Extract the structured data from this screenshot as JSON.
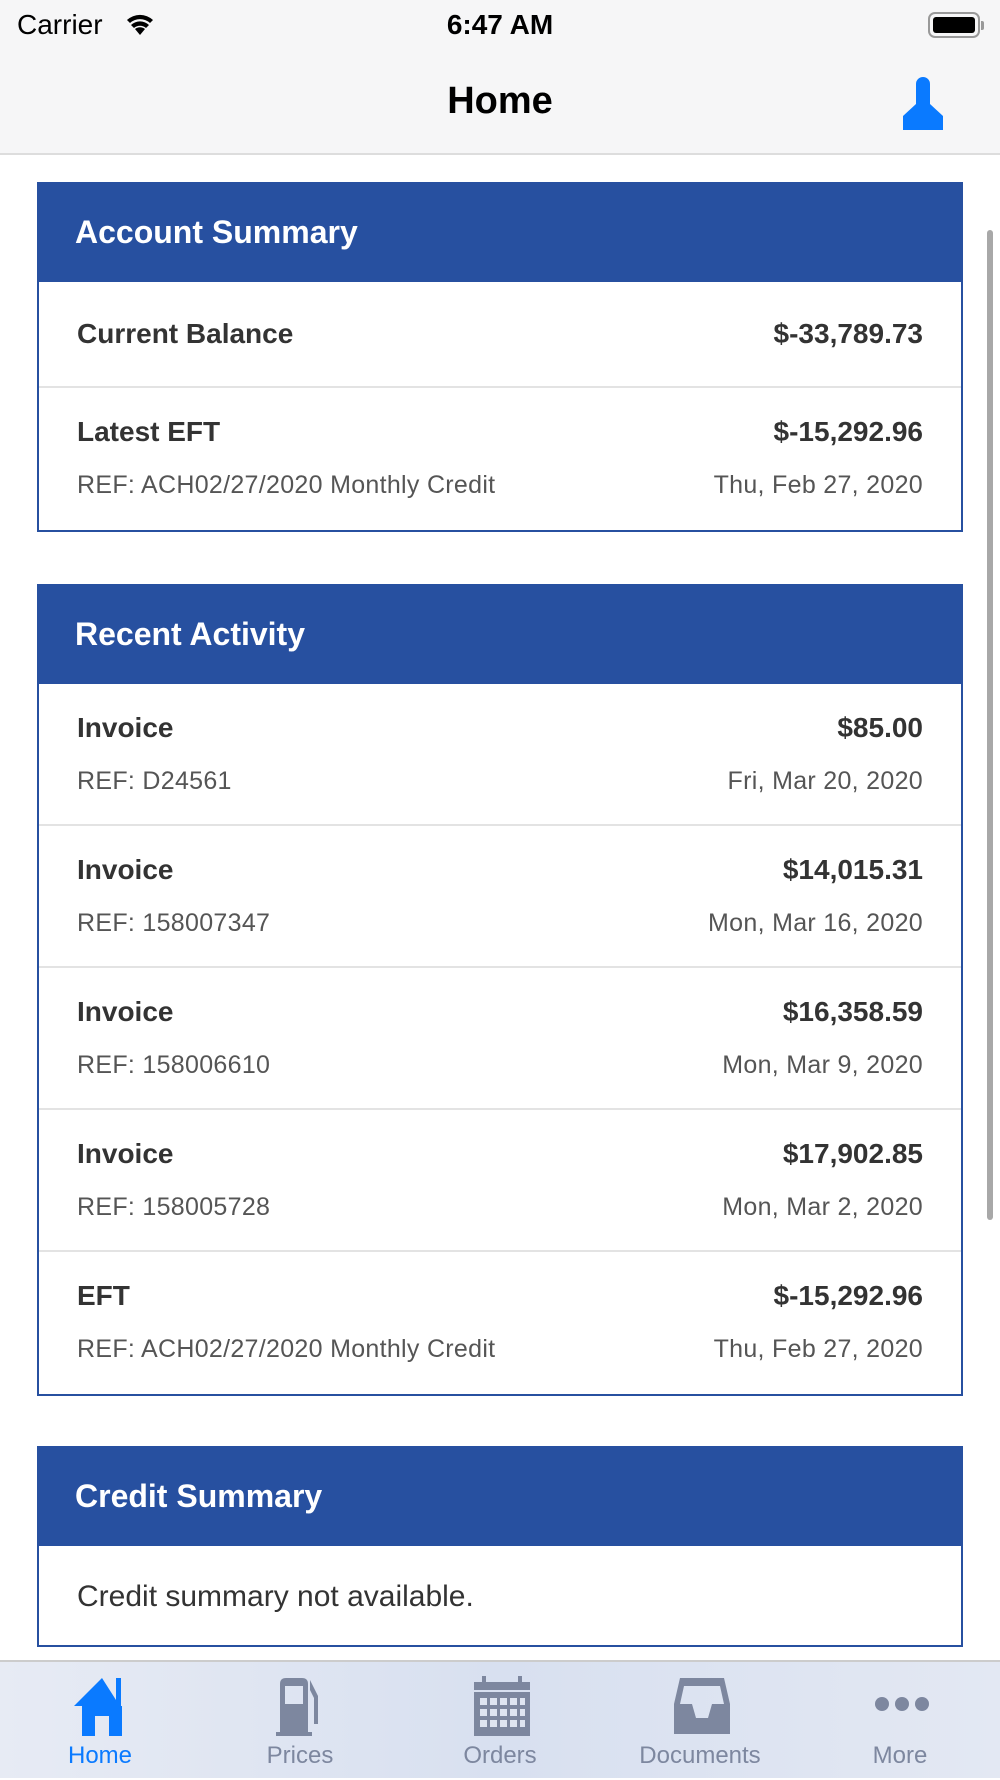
{
  "status": {
    "carrier": "Carrier",
    "time": "6:47 AM"
  },
  "nav": {
    "title": "Home",
    "profile_icon": "user-icon"
  },
  "account_summary": {
    "title": "Account Summary",
    "current_balance": {
      "label": "Current Balance",
      "value": "$-33,789.73"
    },
    "latest_eft": {
      "label": "Latest EFT",
      "value": "$-15,292.96",
      "ref": "REF: ACH02/27/2020 Monthly Credit",
      "date": "Thu, Feb 27, 2020"
    }
  },
  "recent_activity": {
    "title": "Recent Activity",
    "items": [
      {
        "type": "Invoice",
        "amount": "$85.00",
        "ref": "REF: D24561",
        "date": "Fri, Mar 20, 2020"
      },
      {
        "type": "Invoice",
        "amount": "$14,015.31",
        "ref": "REF: 158007347",
        "date": "Mon, Mar 16, 2020"
      },
      {
        "type": "Invoice",
        "amount": "$16,358.59",
        "ref": "REF: 158006610",
        "date": "Mon, Mar 9, 2020"
      },
      {
        "type": "Invoice",
        "amount": "$17,902.85",
        "ref": "REF: 158005728",
        "date": "Mon, Mar 2, 2020"
      },
      {
        "type": "EFT",
        "amount": "$-15,292.96",
        "ref": "REF: ACH02/27/2020 Monthly Credit",
        "date": "Thu, Feb 27, 2020"
      }
    ]
  },
  "credit_summary": {
    "title": "Credit Summary",
    "message": "Credit summary not available."
  },
  "tabs": [
    {
      "label": "Home",
      "icon": "home-icon",
      "active": true
    },
    {
      "label": "Prices",
      "icon": "fuel-pump-icon"
    },
    {
      "label": "Orders",
      "icon": "calendar-icon"
    },
    {
      "label": "Documents",
      "icon": "inbox-tray-icon"
    },
    {
      "label": "More",
      "icon": "more-dots-icon"
    }
  ],
  "colors": {
    "brand": "#2750a0",
    "accent": "#0a7aff",
    "tab_inactive": "#7d879f"
  }
}
